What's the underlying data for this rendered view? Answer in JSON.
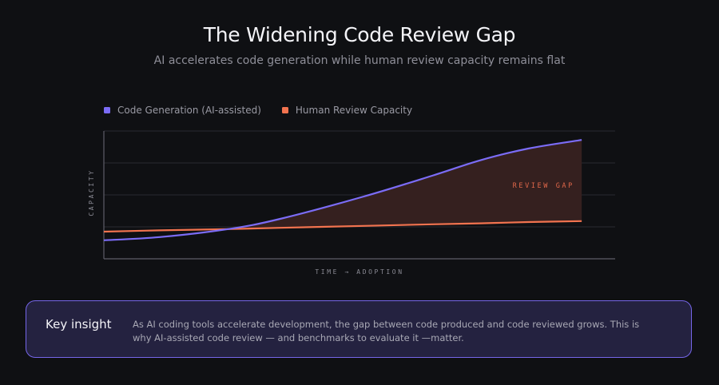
{
  "header": {
    "title": "The Widening Code Review Gap",
    "subtitle": "AI accelerates code generation while human review capacity remains flat"
  },
  "chart_data": {
    "type": "line",
    "title": "The Widening Code Review Gap",
    "subtitle": "AI accelerates code generation while human review capacity remains flat",
    "xlabel": "TIME → ADOPTION",
    "ylabel": "CAPACITY",
    "xlim": [
      0,
      107
    ],
    "ylim": [
      0,
      4
    ],
    "grid": true,
    "grid_lines_y": [
      1,
      2,
      3,
      4
    ],
    "legend_position": "top-left",
    "x": [
      0,
      11.7,
      26,
      36.9,
      54.4,
      68.7,
      78.7,
      88.8,
      100
    ],
    "series": [
      {
        "name": "Code Generation (AI-assisted)",
        "color": "#7b6cf6",
        "values": [
          0.58,
          0.68,
          0.93,
          1.25,
          1.95,
          2.6,
          3.08,
          3.45,
          3.72
        ]
      },
      {
        "name": "Human Review Capacity",
        "color": "#f2734f",
        "values": [
          0.85,
          0.89,
          0.93,
          0.97,
          1.03,
          1.08,
          1.11,
          1.15,
          1.18
        ]
      }
    ],
    "annotations": [
      {
        "text": "REVIEW GAP",
        "x": 92,
        "y": 2.3,
        "color": "#e0674a"
      }
    ],
    "fill_between": {
      "label": "REVIEW GAP",
      "from_series": "Human Review Capacity",
      "to_series": "Code Generation (AI-assisted)",
      "color": "#35201f"
    },
    "axis_color": "#5e5e68",
    "grid_color": "#2a2a30"
  },
  "insight": {
    "title": "Key insight",
    "body": "As AI coding tools accelerate development, the gap between code produced and code reviewed grows. This is why AI-assisted code review — and benchmarks to evaluate it —matter."
  }
}
